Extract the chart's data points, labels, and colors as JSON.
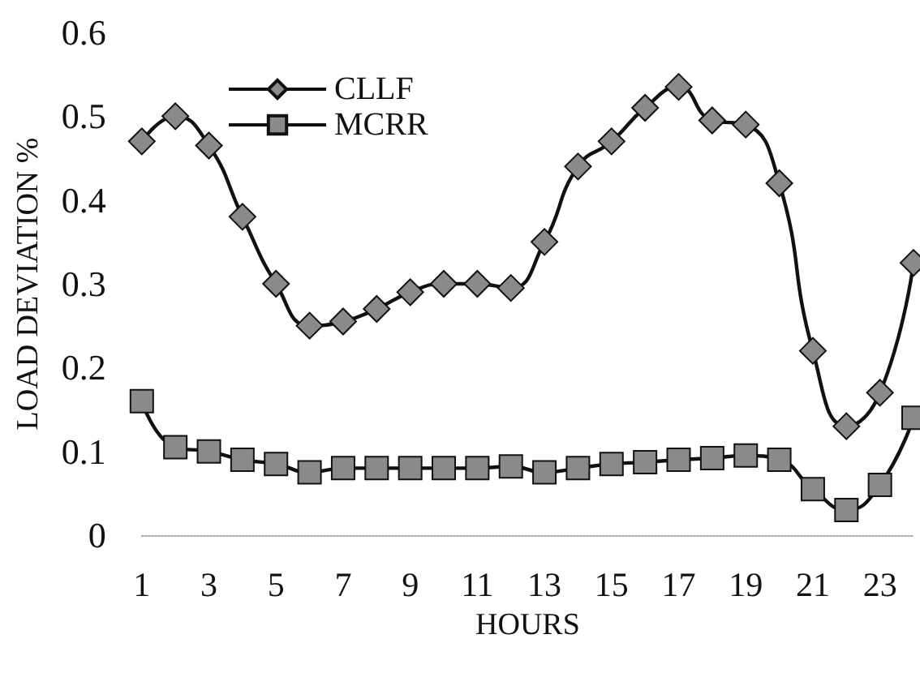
{
  "chart_data": {
    "type": "line",
    "xlabel": "HOURS",
    "ylabel": "LOAD DEVIATION %",
    "x": [
      1,
      2,
      3,
      4,
      5,
      6,
      7,
      8,
      9,
      10,
      11,
      12,
      13,
      14,
      15,
      16,
      17,
      18,
      19,
      20,
      21,
      22,
      23,
      24
    ],
    "series": [
      {
        "name": "CLLF",
        "color": "#111111",
        "marker": "diamond",
        "values": [
          0.47,
          0.5,
          0.465,
          0.38,
          0.3,
          0.25,
          0.255,
          0.27,
          0.29,
          0.3,
          0.3,
          0.295,
          0.35,
          0.44,
          0.47,
          0.51,
          0.535,
          0.495,
          0.49,
          0.42,
          0.22,
          0.13,
          0.17,
          0.325
        ]
      },
      {
        "name": "MCRR",
        "color": "#111111",
        "marker": "square",
        "values": [
          0.16,
          0.105,
          0.1,
          0.09,
          0.085,
          0.075,
          0.08,
          0.08,
          0.08,
          0.08,
          0.08,
          0.082,
          0.075,
          0.08,
          0.085,
          0.087,
          0.09,
          0.092,
          0.095,
          0.09,
          0.055,
          0.03,
          0.06,
          0.14
        ]
      }
    ],
    "xlim": [
      1,
      24
    ],
    "xticks": [
      1,
      3,
      5,
      7,
      9,
      11,
      13,
      15,
      17,
      19,
      21,
      23
    ],
    "ylim": [
      0,
      0.6
    ],
    "yticks": [
      0,
      0.1,
      0.2,
      0.3,
      0.4,
      0.5,
      0.6
    ],
    "grid": false,
    "legend": "top left",
    "line_style": "solid"
  }
}
